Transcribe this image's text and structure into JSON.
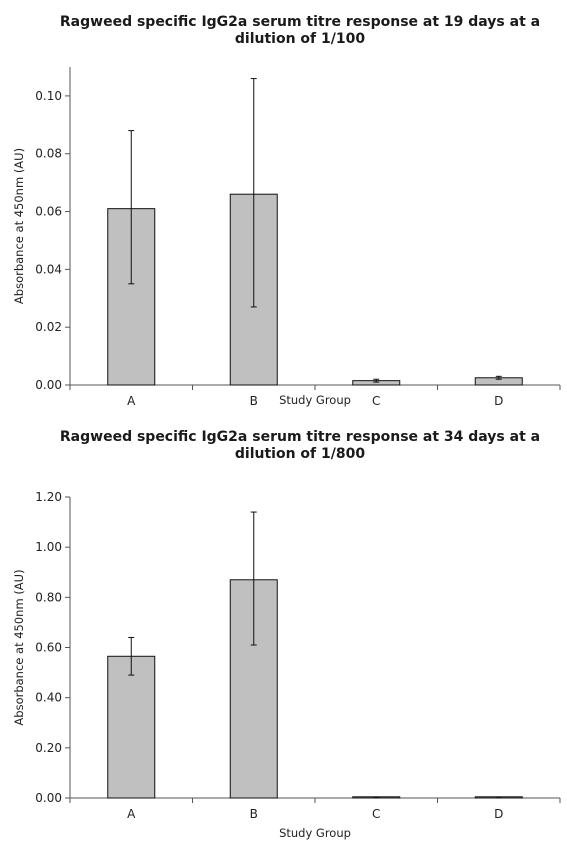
{
  "chart_data": [
    {
      "type": "bar",
      "title": "Ragweed specific IgG2a serum titre response at 19 days at a dilution of 1/100",
      "xlabel": "Study Group",
      "ylabel": "Absorbance at 450nm (AU)",
      "categories": [
        "A",
        "B",
        "C",
        "D"
      ],
      "values": [
        0.061,
        0.066,
        0.0015,
        0.0025
      ],
      "error_low": [
        0.035,
        0.027,
        0.001,
        0.002
      ],
      "error_high": [
        0.088,
        0.106,
        0.002,
        0.003
      ],
      "ylim": [
        0,
        0.11
      ],
      "yticks": [
        0.0,
        0.02,
        0.04,
        0.06,
        0.08,
        0.1
      ],
      "ytick_labels": [
        "0.00",
        "0.02",
        "0.04",
        "0.06",
        "0.08",
        "0.10"
      ],
      "grid": false,
      "bar_color": "#c0c0c0"
    },
    {
      "type": "bar",
      "title": "Ragweed specific IgG2a serum titre response at 34 days at a dilution of 1/800",
      "xlabel": "Study Group",
      "ylabel": "Absorbance at 450nm (AU)",
      "categories": [
        "A",
        "B",
        "C",
        "D"
      ],
      "values": [
        0.565,
        0.87,
        0.002,
        0.001
      ],
      "error_low": [
        0.49,
        0.61,
        0.002,
        0.001
      ],
      "error_high": [
        0.64,
        1.14,
        0.002,
        0.001
      ],
      "ylim": [
        0,
        1.2
      ],
      "yticks": [
        0.0,
        0.2,
        0.4,
        0.6,
        0.8,
        1.0,
        1.2
      ],
      "ytick_labels": [
        "0.00",
        "0.20",
        "0.40",
        "0.60",
        "0.80",
        "1.00",
        "1.20"
      ],
      "grid": false,
      "bar_color": "#c0c0c0"
    }
  ]
}
